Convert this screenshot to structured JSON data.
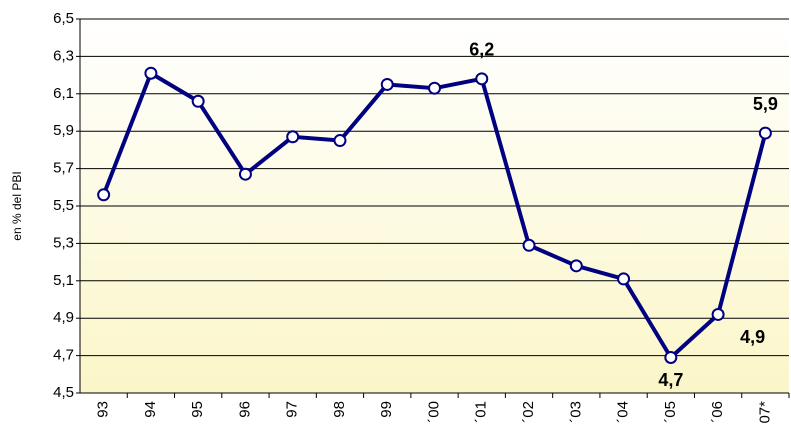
{
  "chart_data": {
    "type": "line",
    "y_label": "en % del PBI",
    "categories": [
      "93",
      "94",
      "95",
      "96",
      "97",
      "98",
      "99",
      "´00",
      "´01",
      "´02",
      "´03",
      "´04",
      "´05",
      "´06",
      "07*"
    ],
    "values": [
      5.56,
      6.21,
      6.06,
      5.67,
      5.87,
      5.85,
      6.15,
      6.13,
      6.18,
      5.29,
      5.18,
      5.11,
      4.69,
      4.92,
      5.89
    ],
    "value_labels": [
      null,
      null,
      null,
      null,
      null,
      null,
      null,
      null,
      "6,2",
      null,
      null,
      null,
      "4,7",
      "4,9",
      "5,9"
    ],
    "color": "#000080",
    "ylim": [
      4.5,
      6.5
    ],
    "yticks": [
      {
        "value": 4.5,
        "label": "4,5"
      },
      {
        "value": 4.7,
        "label": "4,7"
      },
      {
        "value": 4.9,
        "label": "4,9"
      },
      {
        "value": 5.1,
        "label": "5,1"
      },
      {
        "value": 5.3,
        "label": "5,3"
      },
      {
        "value": 5.5,
        "label": "5,5"
      },
      {
        "value": 5.7,
        "label": "5,7"
      },
      {
        "value": 5.9,
        "label": "5,9"
      },
      {
        "value": 6.1,
        "label": "6,1"
      },
      {
        "value": 6.3,
        "label": "6,3"
      },
      {
        "value": 6.5,
        "label": "6,5"
      }
    ],
    "grid": true
  }
}
